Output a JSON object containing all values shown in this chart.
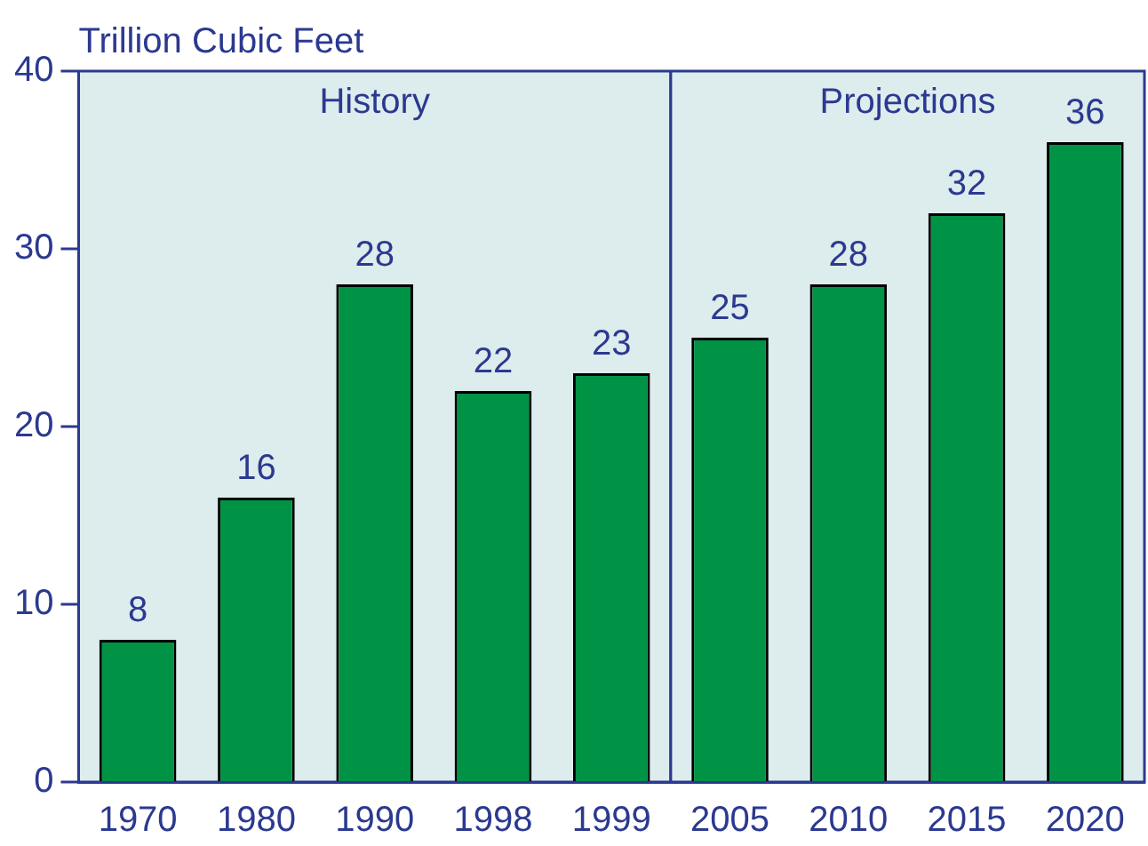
{
  "chart_data": {
    "type": "bar",
    "ylabel": "Trillion Cubic Feet",
    "categories": [
      "1970",
      "1980",
      "1990",
      "1998",
      "1999",
      "2005",
      "2010",
      "2015",
      "2020"
    ],
    "values": [
      8,
      16,
      28,
      22,
      23,
      25,
      28,
      32,
      36
    ],
    "color": "#009245",
    "ylim": [
      0,
      40
    ],
    "yticks": [
      0,
      10,
      20,
      30,
      40
    ],
    "grid": false,
    "legend": false,
    "data_labels": true,
    "bands": [
      {
        "axis": "x",
        "from": "1970",
        "to": "1999",
        "label": "History",
        "color": "#ddecec"
      },
      {
        "axis": "x",
        "from": "2005",
        "to": "2020",
        "label": "Projections",
        "color": "#ddecec"
      }
    ]
  }
}
